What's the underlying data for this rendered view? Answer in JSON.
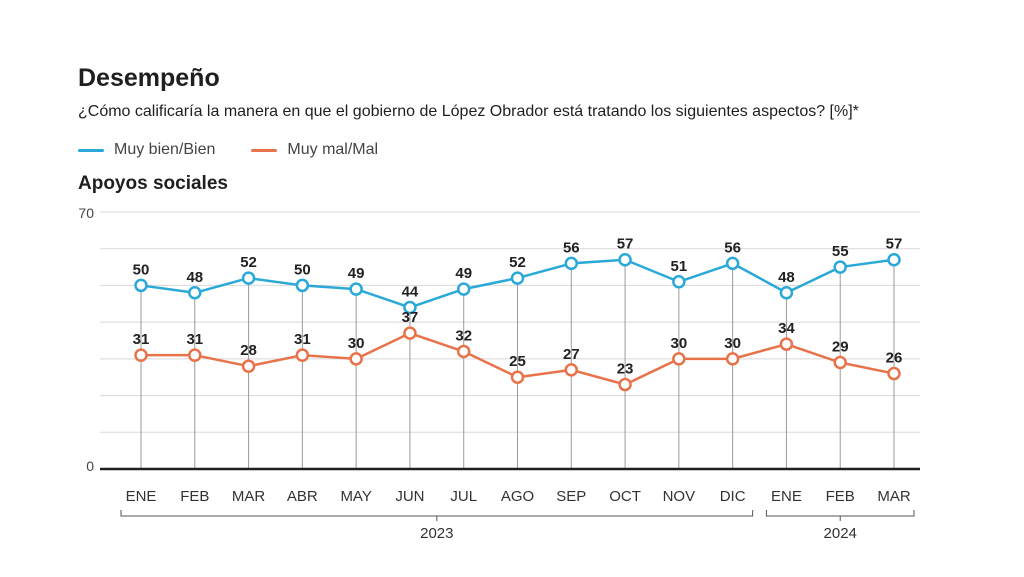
{
  "header": {
    "title": "Desempeño",
    "subtitle": "¿Cómo calificaría la manera en que el gobierno de López Obrador está tratando los siguientes aspectos? [%]*",
    "section": "Apoyos sociales"
  },
  "colors": {
    "series1": "#2aa9d9",
    "series2": "#e8734a",
    "axis": "#1f1f1f",
    "grid": "#d8d8d8",
    "drop": "#9a9a9a"
  },
  "chart_data": {
    "type": "line",
    "categories": [
      "ENE",
      "FEB",
      "MAR",
      "ABR",
      "MAY",
      "JUN",
      "JUL",
      "AGO",
      "SEP",
      "OCT",
      "NOV",
      "DIC",
      "ENE",
      "FEB",
      "MAR"
    ],
    "series": [
      {
        "name": "Muy bien/Bien",
        "color": "#2aa9d9",
        "values": [
          50,
          48,
          52,
          50,
          49,
          44,
          49,
          52,
          56,
          57,
          51,
          56,
          48,
          55,
          57
        ]
      },
      {
        "name": "Muy mal/Mal",
        "color": "#e8734a",
        "values": [
          31,
          31,
          28,
          31,
          30,
          37,
          32,
          25,
          27,
          23,
          30,
          30,
          34,
          29,
          26
        ]
      }
    ],
    "ylim": [
      0,
      70
    ],
    "yticks": [
      "0",
      "70"
    ],
    "grid": true,
    "legend": "top-left",
    "groups": [
      {
        "label": "2023",
        "start": 0,
        "end": 11
      },
      {
        "label": "2024",
        "start": 12,
        "end": 14
      }
    ]
  }
}
